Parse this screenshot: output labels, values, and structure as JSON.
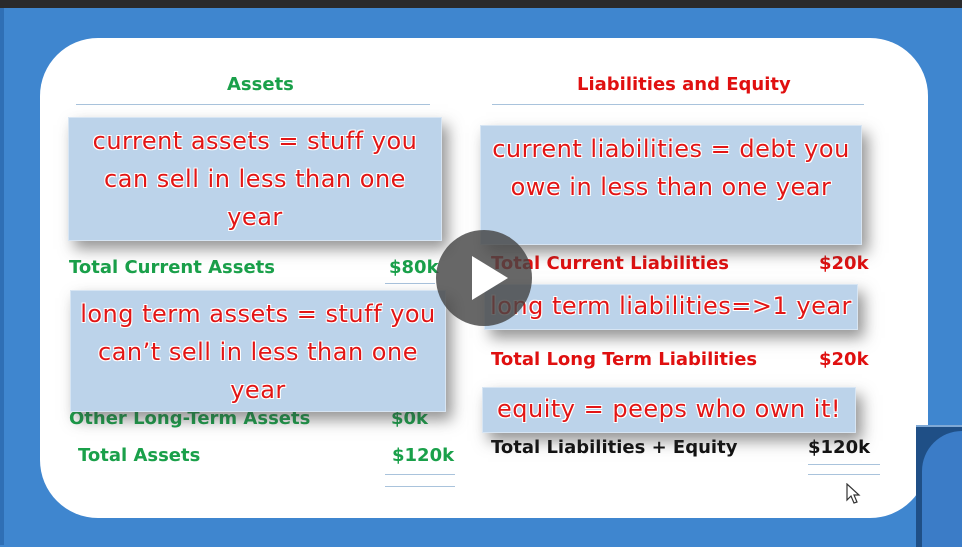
{
  "assets": {
    "heading": "Assets",
    "total_current_label": "Total Current Assets",
    "total_current_value": "$80k",
    "other_long_term_label": "Other Long-Term Assets",
    "other_long_term_value": "$0k",
    "total_label": "Total Assets",
    "total_value": "$120k"
  },
  "liabilities": {
    "heading": "Liabilities and Equity",
    "total_current_label": "Total Current Liabilities",
    "total_current_value": "$20k",
    "total_long_term_label": "Total Long Term Liabilities",
    "total_long_term_value": "$20k",
    "total_label": "Total Liabilities + Equity",
    "total_value": "$120k"
  },
  "notes": {
    "current_assets": [
      "current assets = stuff you",
      "can sell in less than one",
      "year"
    ],
    "long_term_assets": [
      "long term assets = stuff you",
      "can’t sell in less than one",
      "year"
    ],
    "current_liabilities": [
      "current liabilities = debt you",
      "owe in less than one  year"
    ],
    "long_term_liabilities": [
      "long term liabilities=>1 year"
    ],
    "equity": [
      "equity = peeps who own it!"
    ]
  },
  "icons": {
    "play": "play-icon",
    "cursor": "mouse-pointer-icon"
  },
  "colors": {
    "background": "#3f86cf",
    "assets_green": "#1aa04a",
    "liabilities_red": "#e01010",
    "note_fill": "#bcd3ea"
  }
}
